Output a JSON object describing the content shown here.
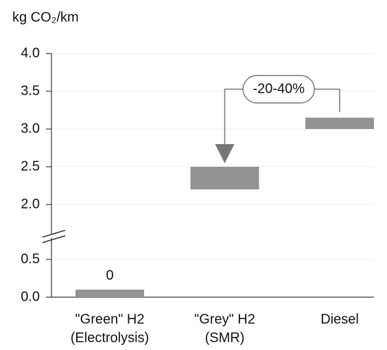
{
  "chart_data": {
    "type": "range_bar",
    "title": "kg CO₂/km",
    "categories": [
      [
        "\"Green\" H2",
        "(Electrolysis)"
      ],
      [
        "\"Grey\" H2",
        "(SMR)"
      ],
      [
        "Diesel"
      ]
    ],
    "low": [
      0,
      2.2,
      3.0
    ],
    "high": [
      0.1,
      2.5,
      3.15
    ],
    "value_labels": [
      "0",
      null,
      null
    ],
    "color": "#939393",
    "ylim": [
      0,
      4
    ],
    "y_break": [
      0.8,
      1.6
    ],
    "yticks": [
      {
        "value": 0,
        "label": "0.0"
      },
      0.5,
      {
        "value": 2,
        "label": "2.0"
      },
      2.5,
      {
        "value": 3,
        "label": "3.0"
      },
      3.5,
      {
        "value": 4,
        "label": "4.0"
      }
    ],
    "grid": true,
    "annotation": {
      "text": "-20-40%",
      "from": 2,
      "to": 1
    }
  }
}
